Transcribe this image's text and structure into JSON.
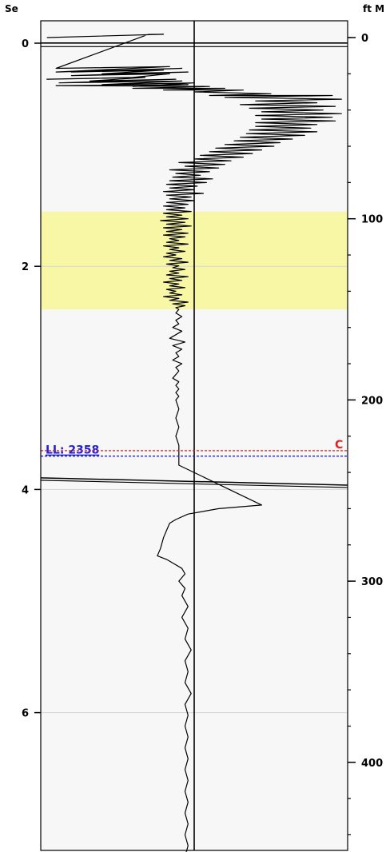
{
  "chart_data": {
    "type": "line",
    "left_axis": {
      "unit_label": "Se",
      "range": [
        0,
        7.35
      ],
      "ticks": [
        "0",
        "2",
        "4",
        "6"
      ],
      "tick_values": [
        0,
        2,
        4,
        6
      ]
    },
    "right_axis": {
      "unit_label": "ft M",
      "range": [
        0,
        458
      ],
      "ticks": [
        "0",
        "100",
        "200",
        "300",
        "400"
      ],
      "tick_values": [
        0,
        100,
        200,
        300,
        400
      ]
    },
    "highlight_band_depth_ft": [
      96,
      150
    ],
    "gridlines_se": [
      2,
      4,
      6
    ],
    "centerline_relative": 0.5,
    "markers": [
      {
        "label": "LL: 2358",
        "color": "#2222dd",
        "depth_ft": 231,
        "style": "dashed"
      },
      {
        "label": "C",
        "color": "#dd2222",
        "depth_ft": 228,
        "style": "dashed"
      }
    ],
    "collar_events_ft": [
      3,
      5,
      243,
      247
    ],
    "series": [
      {
        "points": [
          [
            0.02,
            0
          ],
          [
            0.4,
            -1.8
          ],
          [
            0.35,
            -1.7
          ],
          [
            0.05,
            17
          ],
          [
            0.42,
            16
          ],
          [
            0.05,
            19
          ],
          [
            0.46,
            17
          ],
          [
            0.1,
            19
          ],
          [
            0.4,
            18
          ],
          [
            0.2,
            20
          ],
          [
            0.48,
            19
          ],
          [
            0.1,
            21
          ],
          [
            0.42,
            20
          ],
          [
            0.3,
            22
          ],
          [
            0.02,
            23
          ],
          [
            0.34,
            22
          ],
          [
            0.16,
            24
          ],
          [
            0.44,
            23
          ],
          [
            0.06,
            25
          ],
          [
            0.46,
            24
          ],
          [
            0.2,
            26
          ],
          [
            0.5,
            25
          ],
          [
            0.3,
            27
          ],
          [
            0.48,
            26
          ],
          [
            0.05,
            26.5
          ],
          [
            0.55,
            27
          ],
          [
            0.3,
            28
          ],
          [
            0.6,
            28
          ],
          [
            0.4,
            29
          ],
          [
            0.66,
            29
          ],
          [
            0.5,
            30
          ],
          [
            0.75,
            31
          ],
          [
            0.55,
            32
          ],
          [
            0.95,
            32
          ],
          [
            0.6,
            33
          ],
          [
            0.98,
            34
          ],
          [
            0.7,
            35
          ],
          [
            0.9,
            36
          ],
          [
            0.65,
            37
          ],
          [
            0.96,
            38
          ],
          [
            0.68,
            39
          ],
          [
            0.92,
            40
          ],
          [
            0.72,
            41
          ],
          [
            0.98,
            42
          ],
          [
            0.7,
            43
          ],
          [
            0.95,
            44
          ],
          [
            0.72,
            45
          ],
          [
            0.96,
            46
          ],
          [
            0.7,
            47
          ],
          [
            0.9,
            48
          ],
          [
            0.7,
            49
          ],
          [
            0.88,
            50
          ],
          [
            0.68,
            51
          ],
          [
            0.9,
            52
          ],
          [
            0.67,
            53
          ],
          [
            0.86,
            54
          ],
          [
            0.65,
            55
          ],
          [
            0.82,
            56
          ],
          [
            0.63,
            57
          ],
          [
            0.78,
            58
          ],
          [
            0.6,
            59
          ],
          [
            0.76,
            60
          ],
          [
            0.57,
            61
          ],
          [
            0.72,
            62
          ],
          [
            0.55,
            63
          ],
          [
            0.69,
            64
          ],
          [
            0.52,
            65
          ],
          [
            0.66,
            66
          ],
          [
            0.5,
            67
          ],
          [
            0.62,
            68
          ],
          [
            0.45,
            69
          ],
          [
            0.6,
            70
          ],
          [
            0.47,
            71
          ],
          [
            0.58,
            72
          ],
          [
            0.42,
            73
          ],
          [
            0.55,
            74
          ],
          [
            0.44,
            75
          ],
          [
            0.52,
            76
          ],
          [
            0.43,
            77
          ],
          [
            0.56,
            78
          ],
          [
            0.42,
            79
          ],
          [
            0.54,
            80
          ],
          [
            0.41,
            81
          ],
          [
            0.51,
            82
          ],
          [
            0.42,
            83
          ],
          [
            0.5,
            84
          ],
          [
            0.4,
            85
          ],
          [
            0.53,
            86
          ],
          [
            0.41,
            87
          ],
          [
            0.49,
            88
          ],
          [
            0.42,
            89
          ],
          [
            0.5,
            90
          ],
          [
            0.41,
            91
          ],
          [
            0.48,
            92
          ],
          [
            0.4,
            93
          ],
          [
            0.47,
            94
          ],
          [
            0.41,
            95
          ],
          [
            0.49,
            96
          ],
          [
            0.4,
            97
          ],
          [
            0.46,
            98
          ],
          [
            0.41,
            99
          ],
          [
            0.48,
            100
          ],
          [
            0.39,
            101
          ],
          [
            0.47,
            102
          ],
          [
            0.41,
            103
          ],
          [
            0.49,
            104
          ],
          [
            0.4,
            105
          ],
          [
            0.46,
            106
          ],
          [
            0.41,
            107
          ],
          [
            0.48,
            108
          ],
          [
            0.4,
            109
          ],
          [
            0.47,
            110
          ],
          [
            0.42,
            111
          ],
          [
            0.45,
            112
          ],
          [
            0.41,
            113
          ],
          [
            0.48,
            114
          ],
          [
            0.4,
            115
          ],
          [
            0.45,
            116
          ],
          [
            0.42,
            117
          ],
          [
            0.47,
            118
          ],
          [
            0.41,
            119
          ],
          [
            0.44,
            120
          ],
          [
            0.4,
            121
          ],
          [
            0.46,
            122
          ],
          [
            0.42,
            123
          ],
          [
            0.48,
            124
          ],
          [
            0.41,
            125
          ],
          [
            0.45,
            126
          ],
          [
            0.43,
            127
          ],
          [
            0.47,
            128
          ],
          [
            0.42,
            129
          ],
          [
            0.45,
            130
          ],
          [
            0.41,
            131
          ],
          [
            0.48,
            132
          ],
          [
            0.42,
            133
          ],
          [
            0.46,
            134
          ],
          [
            0.4,
            135
          ],
          [
            0.45,
            136
          ],
          [
            0.42,
            137
          ],
          [
            0.47,
            138
          ],
          [
            0.41,
            139
          ],
          [
            0.44,
            140
          ],
          [
            0.42,
            141
          ],
          [
            0.46,
            142
          ],
          [
            0.4,
            143
          ],
          [
            0.45,
            144
          ],
          [
            0.42,
            145
          ],
          [
            0.48,
            146
          ],
          [
            0.43,
            147
          ],
          [
            0.47,
            148
          ],
          [
            0.44,
            149
          ],
          [
            0.45,
            150
          ],
          [
            0.44,
            152
          ],
          [
            0.46,
            154
          ],
          [
            0.44,
            156
          ],
          [
            0.45,
            158
          ],
          [
            0.43,
            160
          ],
          [
            0.46,
            162
          ],
          [
            0.44,
            164
          ],
          [
            0.42,
            166
          ],
          [
            0.47,
            168
          ],
          [
            0.43,
            170
          ],
          [
            0.46,
            172
          ],
          [
            0.44,
            174
          ],
          [
            0.45,
            176
          ],
          [
            0.43,
            178
          ],
          [
            0.46,
            180
          ],
          [
            0.44,
            182
          ],
          [
            0.45,
            184
          ],
          [
            0.44,
            186
          ],
          [
            0.43,
            188
          ],
          [
            0.45,
            190
          ],
          [
            0.44,
            192
          ],
          [
            0.45,
            194
          ],
          [
            0.44,
            196
          ],
          [
            0.45,
            198
          ],
          [
            0.44,
            200
          ],
          [
            0.45,
            205
          ],
          [
            0.44,
            210
          ],
          [
            0.45,
            215
          ],
          [
            0.44,
            220
          ],
          [
            0.45,
            225
          ],
          [
            0.45,
            232
          ],
          [
            0.45,
            236
          ],
          [
            0.72,
            258
          ],
          [
            0.58,
            260
          ],
          [
            0.48,
            263
          ],
          [
            0.44,
            266
          ],
          [
            0.42,
            268
          ],
          [
            0.41,
            272
          ],
          [
            0.4,
            276
          ],
          [
            0.39,
            282
          ],
          [
            0.38,
            286
          ],
          [
            0.41,
            288
          ],
          [
            0.43,
            290
          ],
          [
            0.46,
            293
          ],
          [
            0.47,
            296
          ],
          [
            0.45,
            300
          ],
          [
            0.47,
            304
          ],
          [
            0.46,
            308
          ],
          [
            0.48,
            314
          ],
          [
            0.46,
            320
          ],
          [
            0.48,
            326
          ],
          [
            0.47,
            332
          ],
          [
            0.49,
            338
          ],
          [
            0.47,
            344
          ],
          [
            0.48,
            350
          ],
          [
            0.47,
            356
          ],
          [
            0.49,
            362
          ],
          [
            0.47,
            368
          ],
          [
            0.48,
            374
          ],
          [
            0.47,
            380
          ],
          [
            0.48,
            386
          ],
          [
            0.47,
            392
          ],
          [
            0.48,
            398
          ],
          [
            0.47,
            404
          ],
          [
            0.48,
            410
          ],
          [
            0.47,
            416
          ],
          [
            0.48,
            422
          ],
          [
            0.47,
            428
          ],
          [
            0.48,
            434
          ],
          [
            0.47,
            440
          ],
          [
            0.48,
            446
          ],
          [
            0.47,
            452
          ],
          [
            0.48,
            458
          ]
        ]
      }
    ]
  }
}
